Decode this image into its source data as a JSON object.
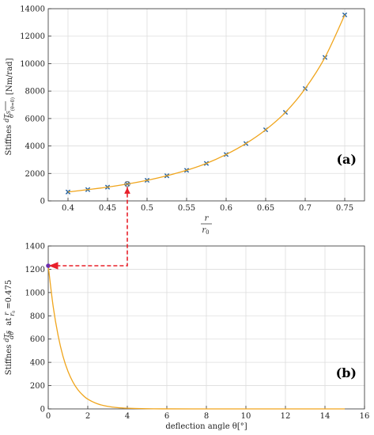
{
  "chart_data": [
    {
      "type": "line",
      "panel_label": "(a)",
      "ylabel_main": "Stiffnes",
      "ylabel_frac_num": "dT",
      "ylabel_frac_num_sub": "S",
      "ylabel_frac_den": "θ",
      "ylabel_eval": "(θ=0)",
      "ylabel_unit": "[Nm/rad]",
      "xlabel_num": "r",
      "xlabel_den": "r",
      "xlabel_den_sub": "0",
      "xlim": [
        0.375,
        0.775
      ],
      "ylim": [
        0,
        14000
      ],
      "xticks": [
        "0.4",
        "0.45",
        "0.5",
        "0.55",
        "0.6",
        "0.65",
        "0.7",
        "0.75"
      ],
      "xtick_values": [
        0.4,
        0.45,
        0.5,
        0.55,
        0.6,
        0.65,
        0.7,
        0.75
      ],
      "yticks": [
        "0",
        "2000",
        "4000",
        "6000",
        "8000",
        "10000",
        "12000",
        "14000"
      ],
      "ytick_values": [
        0,
        2000,
        4000,
        6000,
        8000,
        10000,
        12000,
        14000
      ],
      "grid": true,
      "series": [
        {
          "style": "x-markers",
          "color": "#1f5fa0",
          "x": [
            0.4,
            0.425,
            0.45,
            0.475,
            0.5,
            0.525,
            0.55,
            0.575,
            0.6,
            0.625,
            0.65,
            0.675,
            0.7,
            0.725,
            0.75
          ],
          "y": [
            650,
            820,
            1000,
            1230,
            1500,
            1830,
            2230,
            2730,
            3380,
            4180,
            5180,
            6450,
            8180,
            10450,
            13550
          ]
        },
        {
          "style": "line",
          "color": "#f0a51c",
          "x": [
            0.4,
            0.425,
            0.45,
            0.475,
            0.5,
            0.525,
            0.55,
            0.575,
            0.6,
            0.625,
            0.65,
            0.675,
            0.7,
            0.725,
            0.75
          ],
          "y": [
            650,
            820,
            1000,
            1230,
            1500,
            1830,
            2230,
            2730,
            3380,
            4180,
            5180,
            6450,
            8180,
            10450,
            13550
          ]
        }
      ],
      "highlight": {
        "x": 0.475,
        "y": 1230,
        "color": "#777777"
      }
    },
    {
      "type": "line",
      "panel_label": "(b)",
      "ylabel_main": "Stiffnes",
      "ylabel_frac_num": "dT",
      "ylabel_frac_num_sub": "S",
      "ylabel_frac_den": "dθ",
      "ylabel_at": "at",
      "ylabel_r": "r",
      "ylabel_r0": "r",
      "ylabel_r0_sub": "0",
      "ylabel_value": "=0.475",
      "xlabel": "deflection angle θ[°]",
      "xlim": [
        0,
        16
      ],
      "ylim": [
        0,
        1400
      ],
      "xticks": [
        "0",
        "2",
        "4",
        "6",
        "8",
        "10",
        "12",
        "14",
        "16"
      ],
      "xtick_values": [
        0,
        2,
        4,
        6,
        8,
        10,
        12,
        14,
        16
      ],
      "yticks": [
        "0",
        "200",
        "400",
        "600",
        "800",
        "1000",
        "1200",
        "1400"
      ],
      "ytick_values": [
        0,
        200,
        400,
        600,
        800,
        1000,
        1200,
        1400
      ],
      "grid": true,
      "series": [
        {
          "style": "line",
          "color": "#f0a51c",
          "x": [
            0,
            0.25,
            0.5,
            0.75,
            1,
            1.25,
            1.5,
            1.75,
            2,
            2.5,
            3,
            3.5,
            4,
            5,
            6,
            8,
            10,
            12,
            14,
            15
          ],
          "y": [
            1230,
            880,
            630,
            450,
            322,
            231,
            165,
            118,
            84,
            43,
            22,
            11,
            6,
            1.5,
            0.4,
            0,
            0,
            0,
            0,
            0
          ]
        }
      ],
      "start_marker": {
        "x": 0,
        "y": 1230,
        "color": "#6a2fb0"
      }
    }
  ],
  "connector": {
    "color": "#e8202a",
    "from_x": 0.475,
    "to_y": 1230
  }
}
